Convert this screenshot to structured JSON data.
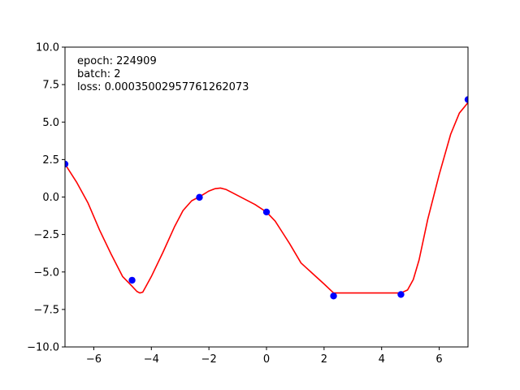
{
  "chart_data": {
    "type": "scatter",
    "title": "",
    "xlabel": "",
    "ylabel": "",
    "xlim": [
      -7,
      7
    ],
    "ylim": [
      -10,
      10
    ],
    "grid": false,
    "x_ticks": [
      -6,
      -4,
      -2,
      0,
      2,
      4,
      6
    ],
    "x_tick_labels": [
      "−6",
      "−4",
      "−2",
      "0",
      "2",
      "4",
      "6"
    ],
    "y_ticks": [
      -10,
      -7.5,
      -5,
      -2.5,
      0,
      2.5,
      5,
      7.5,
      10
    ],
    "y_tick_labels": [
      "−10.0",
      "−7.5",
      "−5.0",
      "−2.5",
      "0.0",
      "2.5",
      "5.0",
      "7.5",
      "10.0"
    ],
    "annotations": [
      "epoch: 224909",
      "batch: 2",
      "loss: 0.00035002957761262073"
    ],
    "series": [
      {
        "kind": "scatter",
        "color": "#0000ff",
        "x": [
          -7.0,
          -4.67,
          -2.33,
          0.0,
          2.33,
          4.67,
          7.0
        ],
        "y": [
          2.2,
          -5.55,
          -0.02,
          -1.0,
          -6.6,
          -6.5,
          6.5
        ]
      },
      {
        "kind": "line",
        "color": "#ff0000",
        "x": [
          -7.0,
          -6.6,
          -6.2,
          -5.8,
          -5.4,
          -5.0,
          -4.67,
          -4.5,
          -4.4,
          -4.3,
          -4.2,
          -4.0,
          -3.6,
          -3.2,
          -2.9,
          -2.6,
          -2.33,
          -2.0,
          -1.8,
          -1.6,
          -1.4,
          -1.2,
          -0.8,
          -0.4,
          0.0,
          0.3,
          0.6,
          0.8,
          1.2,
          1.6,
          2.0,
          2.33,
          2.6,
          3.0,
          3.5,
          4.0,
          4.4,
          4.67,
          4.9,
          5.1,
          5.3,
          5.6,
          6.0,
          6.4,
          6.7,
          7.0
        ],
        "y": [
          2.2,
          1.0,
          -0.4,
          -2.2,
          -3.8,
          -5.3,
          -5.95,
          -6.3,
          -6.4,
          -6.35,
          -6.0,
          -5.3,
          -3.7,
          -2.0,
          -0.9,
          -0.25,
          0.02,
          0.4,
          0.55,
          0.6,
          0.5,
          0.3,
          -0.1,
          -0.5,
          -1.0,
          -1.6,
          -2.5,
          -3.1,
          -4.4,
          -5.1,
          -5.8,
          -6.4,
          -6.4,
          -6.4,
          -6.4,
          -6.4,
          -6.4,
          -6.4,
          -6.2,
          -5.5,
          -4.2,
          -1.5,
          1.5,
          4.2,
          5.6,
          6.3
        ]
      }
    ]
  }
}
